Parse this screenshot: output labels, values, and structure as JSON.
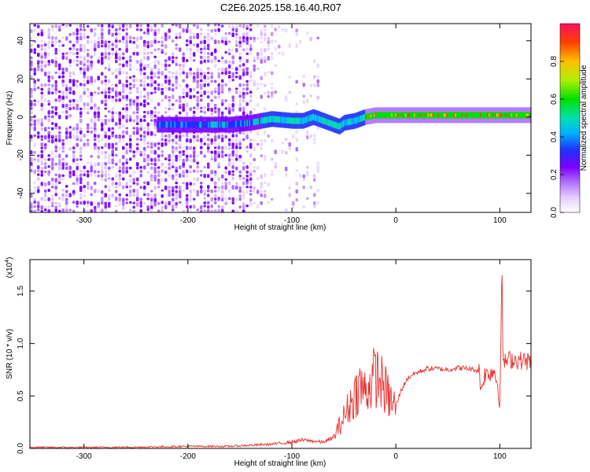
{
  "title": "C2E6.2025.158.16.40.R07",
  "chart_data": [
    {
      "type": "heatmap",
      "xlabel": "Height of straight line (km)",
      "ylabel": "Frequency (Hz)",
      "xlim": [
        -352,
        130
      ],
      "ylim": [
        -50,
        49
      ],
      "x_ticks": [
        -300,
        -200,
        -100,
        0,
        100
      ],
      "x_tick_labels": [
        "-300",
        "-200",
        "-100",
        "0",
        "100"
      ],
      "y_ticks": [
        -40,
        -20,
        0,
        20,
        40
      ],
      "y_tick_labels": [
        "-40",
        "-20",
        "0",
        "20",
        "40"
      ],
      "colorbar": {
        "label": "Normalized spectral amplitude",
        "range": [
          0,
          1
        ],
        "ticks": [
          0.0,
          0.2,
          0.4,
          0.6,
          0.8
        ],
        "tick_labels": [
          "0.0",
          "0.2",
          "0.4",
          "0.6",
          "0.8"
        ],
        "colors": [
          "#ffffff",
          "#e6ccff",
          "#b070ff",
          "#7a00ff",
          "#2030ff",
          "#00b0ff",
          "#00e0b0",
          "#00e000",
          "#b0f000",
          "#ffc000",
          "#ff4000",
          "#ff1060"
        ]
      },
      "ridge": {
        "description": "frequency of strongest signal vs height",
        "x": [
          -230,
          -200,
          -160,
          -140,
          -120,
          -100,
          -90,
          -80,
          -70,
          -60,
          -55,
          -50,
          -40,
          -30,
          -20,
          -10,
          0,
          20,
          50,
          80,
          100,
          130
        ],
        "y": [
          -4,
          -4,
          -4,
          -3,
          -1,
          -2,
          -2,
          0,
          -2,
          -4,
          -5,
          -3,
          -2,
          0,
          1,
          1,
          1,
          1,
          1,
          1,
          1,
          1
        ]
      }
    },
    {
      "type": "line",
      "xlabel": "Height of straight line (km)",
      "ylabel": "SNR (10 * v/v)",
      "y_multiplier": "(x10",
      "y_multiplier_exp": "4",
      "y_multiplier_close": ")",
      "xlim": [
        -352,
        130
      ],
      "ylim": [
        0,
        1.8
      ],
      "x_ticks": [
        -300,
        -200,
        -100,
        0,
        100
      ],
      "x_tick_labels": [
        "-300",
        "-200",
        "-100",
        "0",
        "100"
      ],
      "y_ticks": [
        0,
        0.5,
        1.0,
        1.5
      ],
      "y_tick_labels": [
        "0.0",
        "0.5",
        "1.0",
        "1.5"
      ],
      "color": "#e8312f",
      "series": [
        {
          "x": [
            -352,
            -300,
            -250,
            -200,
            -160,
            -140,
            -120,
            -110,
            -100,
            -90,
            -80,
            -70,
            -60,
            -55,
            -50,
            -45,
            -40,
            -35,
            -30,
            -25,
            -20,
            -15,
            -10,
            -5,
            0,
            5,
            10,
            15,
            20,
            25,
            30,
            40,
            50,
            60,
            70,
            80,
            82,
            85,
            90,
            95,
            98,
            100,
            101,
            102,
            103,
            105,
            110,
            120,
            130
          ],
          "y": [
            0.01,
            0.01,
            0.012,
            0.02,
            0.02,
            0.03,
            0.04,
            0.05,
            0.06,
            0.08,
            0.07,
            0.06,
            0.1,
            0.2,
            0.3,
            0.4,
            0.5,
            0.6,
            0.55,
            0.6,
            0.7,
            0.65,
            0.55,
            0.45,
            0.4,
            0.55,
            0.65,
            0.7,
            0.72,
            0.74,
            0.76,
            0.76,
            0.75,
            0.77,
            0.76,
            0.74,
            0.55,
            0.7,
            0.72,
            0.74,
            0.6,
            0.45,
            1.0,
            1.75,
            0.85,
            0.82,
            0.85,
            0.84,
            0.83
          ]
        }
      ]
    }
  ]
}
